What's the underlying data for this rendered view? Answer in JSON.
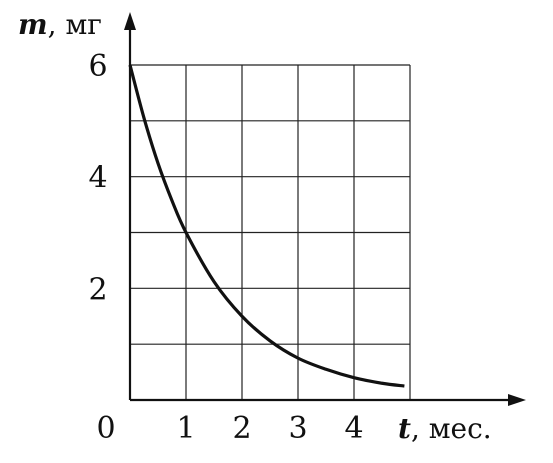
{
  "chart_data": {
    "type": "line",
    "title": "",
    "xlabel": {
      "var": "t",
      "unit": ", мес."
    },
    "ylabel": {
      "var": "m",
      "unit": ", мг"
    },
    "origin_label": "0",
    "xlim": [
      0,
      5
    ],
    "ylim": [
      0,
      6
    ],
    "x_ticks": [
      "1",
      "2",
      "3",
      "4"
    ],
    "y_ticks": [
      "2",
      "4",
      "6"
    ],
    "grid": true,
    "series": [
      {
        "x": [
          0,
          0.25,
          0.5,
          0.75,
          1,
          1.5,
          2,
          2.5,
          3,
          3.5,
          4,
          4.5,
          4.9
        ],
        "y": [
          6,
          5.05,
          4.24,
          3.57,
          3.0,
          2.12,
          1.5,
          1.06,
          0.75,
          0.55,
          0.4,
          0.3,
          0.25
        ]
      }
    ]
  }
}
